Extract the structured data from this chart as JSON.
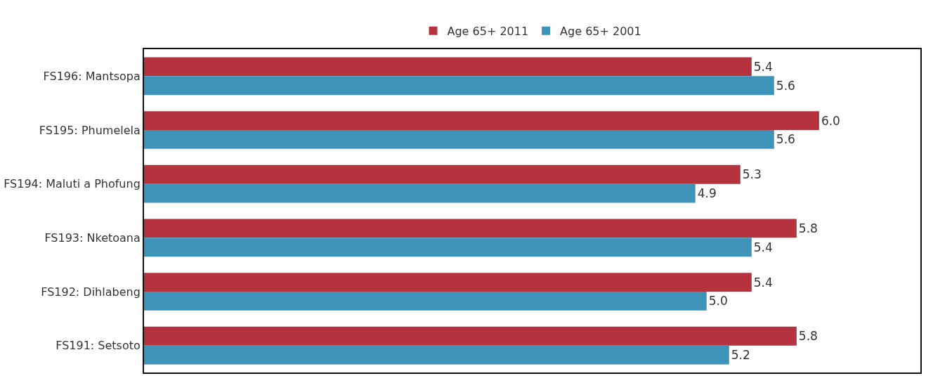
{
  "chart_data": {
    "type": "bar",
    "orientation": "horizontal",
    "categories": [
      "FS196: Mantsopa",
      "FS195: Phumelela",
      "FS194: Maluti a Phofung",
      "FS193: Nketoana",
      "FS192: Dihlabeng",
      "FS191: Setsoto"
    ],
    "series": [
      {
        "name": "Age 65+ 2011",
        "color": "#b5333f",
        "values": [
          5.4,
          6.0,
          5.3,
          5.8,
          5.4,
          5.8
        ],
        "value_labels": [
          "5.4",
          "6.0",
          "5.3",
          "5.8",
          "5.4",
          "5.8"
        ]
      },
      {
        "name": "Age 65+ 2001",
        "color": "#3e94b8",
        "values": [
          5.6,
          5.6,
          4.9,
          5.4,
          5.0,
          5.2
        ],
        "value_labels": [
          "5.6",
          "5.6",
          "4.9",
          "5.4",
          "5.0",
          "5.2"
        ]
      }
    ],
    "xlim": [
      0,
      6.9
    ],
    "data_labels": true,
    "grid": false,
    "legend": "top",
    "tick_labels": "y"
  }
}
